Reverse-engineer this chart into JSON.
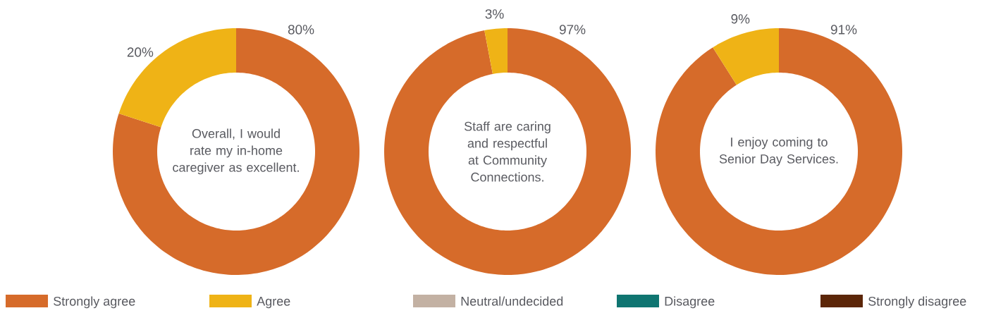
{
  "chart_data": [
    {
      "type": "donut",
      "title": "Overall, I would rate my in-home caregiver as excellent.",
      "categories": [
        "Strongly agree",
        "Agree",
        "Neutral/undecided",
        "Disagree",
        "Strongly disagree"
      ],
      "values": [
        80,
        20,
        0,
        0,
        0
      ],
      "colors": [
        "#d66b2a",
        "#efb316",
        "#c3b1a3",
        "#0f7571",
        "#5c2608"
      ],
      "value_labels": [
        "80%",
        "20%",
        null,
        null,
        null
      ],
      "legend": "bottom"
    },
    {
      "type": "donut",
      "title": "Staff are caring and respectful at Community Connections.",
      "categories": [
        null,
        null,
        null,
        null,
        null
      ],
      "values": [
        97,
        3,
        0,
        0,
        0
      ],
      "colors": [
        "#d66b2a",
        "#efb316",
        "#c3b1a3",
        "#0f7571",
        "#5c2608"
      ],
      "value_labels": [
        "97%",
        "3%",
        null,
        null,
        null
      ]
    },
    {
      "type": "donut",
      "title": "I enjoy coming to Senior Day Services.",
      "categories": [
        null,
        null,
        null,
        null,
        null
      ],
      "values": [
        91,
        9,
        0,
        0,
        0
      ],
      "colors": [
        "#d66b2a",
        "#efb316",
        "#c3b1a3",
        "#0f7571",
        "#5c2608"
      ],
      "value_labels": [
        "91%",
        "9%",
        null,
        null,
        null
      ]
    }
  ]
}
